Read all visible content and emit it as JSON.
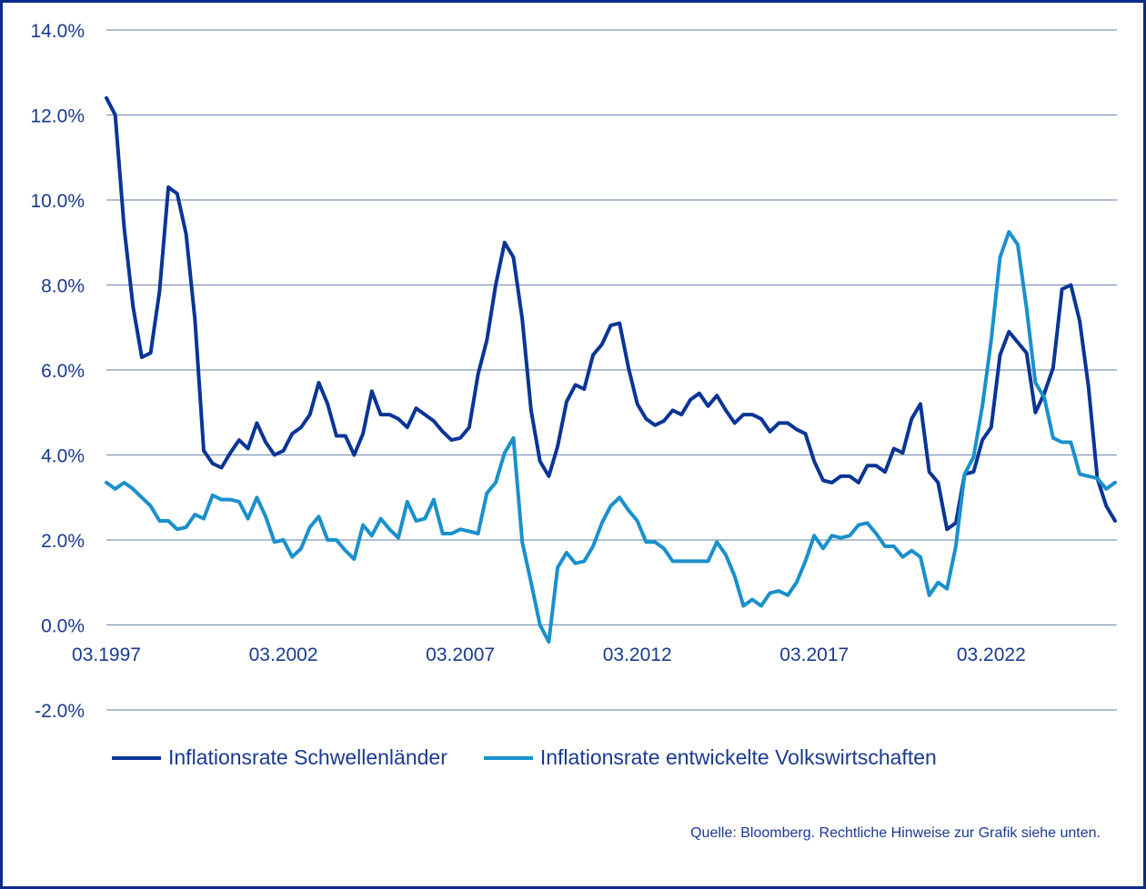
{
  "chart_data": {
    "type": "line",
    "title": "",
    "xlabel": "",
    "ylabel": "",
    "ylim": [
      -2,
      14
    ],
    "yticks": [
      14,
      12,
      10,
      8,
      6,
      4,
      2,
      0,
      -2
    ],
    "ytick_labels": [
      "14.0%",
      "12.0%",
      "10.0%",
      "8.0%",
      "6.0%",
      "4.0%",
      "2.0%",
      "0.0%",
      "-2.0%"
    ],
    "x_start": "03.1997",
    "frequency": "quarterly",
    "xtick_labels": [
      "03.1997",
      "03.2002",
      "03.2007",
      "03.2012",
      "03.2017",
      "03.2022"
    ],
    "xtick_indices": [
      0,
      20,
      40,
      60,
      80,
      100
    ],
    "grid": true,
    "legend_position": "bottom",
    "series": [
      {
        "name": "Inflationsrate Schwellenländer",
        "color": "#0a3596",
        "values": [
          12.4,
          12.0,
          9.35,
          7.5,
          6.3,
          6.4,
          7.85,
          10.3,
          10.15,
          9.2,
          7.2,
          4.1,
          3.8,
          3.7,
          4.05,
          4.35,
          4.15,
          4.75,
          4.3,
          4.0,
          4.1,
          4.5,
          4.65,
          4.95,
          5.7,
          5.2,
          4.45,
          4.45,
          4.0,
          4.5,
          5.5,
          4.95,
          4.95,
          4.85,
          4.65,
          5.1,
          4.95,
          4.8,
          4.55,
          4.35,
          4.4,
          4.65,
          5.9,
          6.7,
          8.0,
          9.0,
          8.65,
          7.2,
          5.05,
          3.85,
          3.5,
          4.2,
          5.25,
          5.65,
          5.55,
          6.35,
          6.6,
          7.05,
          7.1,
          6.05,
          5.2,
          4.85,
          4.7,
          4.8,
          5.05,
          4.95,
          5.3,
          5.45,
          5.15,
          5.4,
          5.05,
          4.75,
          4.95,
          4.95,
          4.85,
          4.55,
          4.75,
          4.75,
          4.6,
          4.5,
          3.85,
          3.4,
          3.35,
          3.5,
          3.5,
          3.35,
          3.75,
          3.75,
          3.6,
          4.15,
          4.05,
          4.85,
          5.2,
          3.6,
          3.35,
          2.25,
          2.4,
          3.55,
          3.6,
          4.35,
          4.65,
          6.35,
          6.9,
          6.65,
          6.4,
          5.0,
          5.45,
          6.05,
          7.9,
          8.0,
          7.15,
          5.6,
          3.45,
          2.8,
          2.45
        ]
      },
      {
        "name": "Inflationsrate entwickelte Volkswirtschaften",
        "color": "#1a90cc",
        "values": [
          3.35,
          3.2,
          3.35,
          3.2,
          3.0,
          2.8,
          2.45,
          2.45,
          2.25,
          2.3,
          2.6,
          2.5,
          3.05,
          2.95,
          2.95,
          2.9,
          2.5,
          3.0,
          2.55,
          1.95,
          2.0,
          1.6,
          1.8,
          2.3,
          2.55,
          2.0,
          2.0,
          1.75,
          1.55,
          2.35,
          2.1,
          2.5,
          2.25,
          2.05,
          2.9,
          2.45,
          2.5,
          2.95,
          2.15,
          2.15,
          2.25,
          2.2,
          2.15,
          3.1,
          3.35,
          4.05,
          4.4,
          1.95,
          1.0,
          0.0,
          -0.4,
          1.35,
          1.7,
          1.45,
          1.5,
          1.85,
          2.4,
          2.8,
          3.0,
          2.7,
          2.45,
          1.95,
          1.95,
          1.8,
          1.5,
          1.5,
          1.5,
          1.5,
          1.5,
          1.95,
          1.65,
          1.15,
          0.45,
          0.6,
          0.45,
          0.75,
          0.8,
          0.7,
          1.0,
          1.5,
          2.1,
          1.8,
          2.1,
          2.05,
          2.1,
          2.35,
          2.4,
          2.15,
          1.85,
          1.85,
          1.6,
          1.75,
          1.6,
          0.7,
          1.0,
          0.85,
          1.85,
          3.55,
          3.95,
          5.15,
          6.7,
          8.65,
          9.25,
          8.95,
          7.45,
          5.7,
          5.35,
          4.4,
          4.3,
          4.3,
          3.55,
          3.5,
          3.45,
          3.2,
          3.35
        ]
      }
    ],
    "source": "Quelle: Bloomberg. Rechtliche Hinweise zur Grafik siehe unten."
  }
}
